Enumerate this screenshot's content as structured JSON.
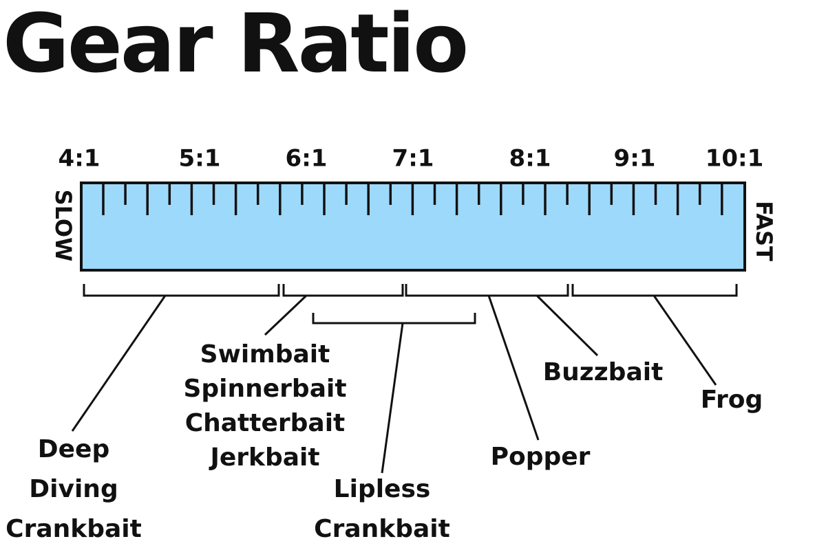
{
  "title": "Gear Ratio",
  "scale_labels": [
    "4:1",
    "5:1",
    "6:1",
    "7:1",
    "8:1",
    "9:1",
    "10:1"
  ],
  "side_labels": {
    "slow": "SLOW",
    "fast": "FAST"
  },
  "lures": [
    {
      "lines": [
        "Deep",
        "Diving",
        "Crankbait"
      ]
    },
    {
      "lines": [
        "Swimbait",
        "Spinnerbait",
        "Chatterbait",
        "Jerkbait"
      ]
    },
    {
      "lines": [
        "Lipless",
        "Crankbait"
      ]
    },
    {
      "lines": [
        "Popper"
      ]
    },
    {
      "lines": [
        "Buzzbait"
      ]
    },
    {
      "lines": [
        "Frog"
      ]
    }
  ]
}
